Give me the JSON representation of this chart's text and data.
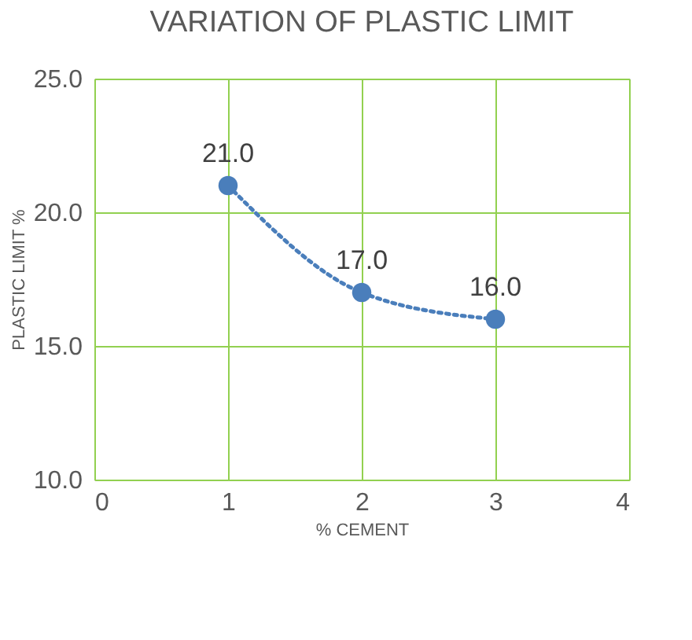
{
  "chart_data": {
    "type": "line",
    "title": "VARIATION OF PLASTIC LIMIT",
    "xlabel": "% CEMENT",
    "ylabel": "PLASTIC  LIMIT %",
    "x": [
      1,
      2,
      3
    ],
    "series": [
      {
        "color": "#4a7ebb",
        "values": [
          21,
          17,
          16
        ],
        "value_labels": [
          "21.0",
          "17.0",
          "16.0"
        ]
      }
    ],
    "xlim": [
      0,
      4
    ],
    "xticks": [
      0,
      1,
      2,
      3,
      4
    ],
    "ylim": [
      10,
      25
    ],
    "yticks": [
      {
        "value": 10,
        "label": "10.0"
      },
      {
        "value": 15,
        "label": "15.0"
      },
      {
        "value": 20,
        "label": "20.0"
      },
      {
        "value": 25,
        "label": "25.0"
      }
    ],
    "grid": true,
    "marker": "circle",
    "line_style": "dotted"
  }
}
